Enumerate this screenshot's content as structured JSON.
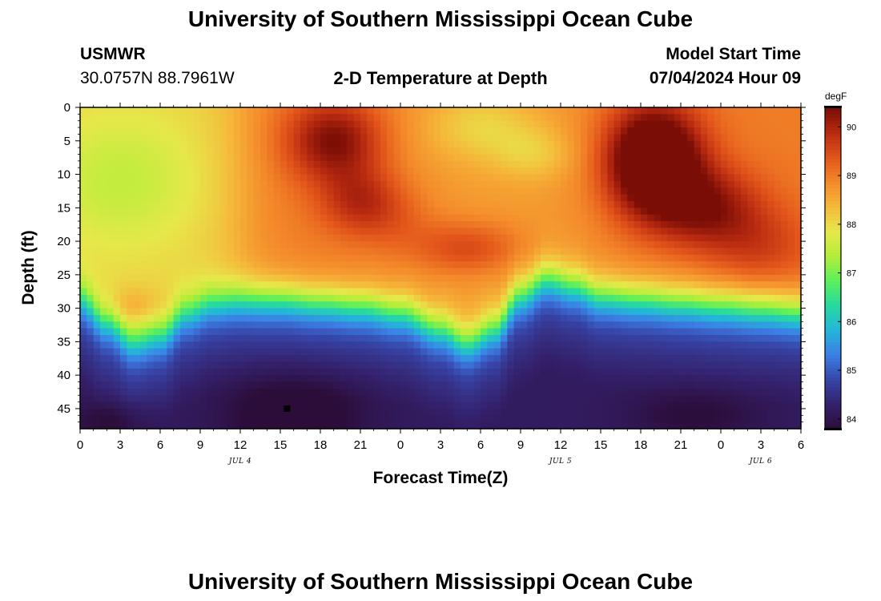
{
  "header": {
    "title": "University of Southern Mississippi Ocean Cube",
    "station": "USMWR",
    "coords": "30.0757N  88.7961W",
    "subtitle": "2-D Temperature at Depth",
    "model_start_label": "Model Start Time",
    "model_start_value": "07/04/2024 Hour 09"
  },
  "footer": {
    "title": "University of Southern Mississippi Ocean Cube"
  },
  "colors": {
    "scale": [
      "#2c0d3a",
      "#34206a",
      "#3745a8",
      "#3c7fe6",
      "#23b6d9",
      "#27d9a0",
      "#5df05a",
      "#b4ee3a",
      "#e6e84a",
      "#f5b83a",
      "#f4892a",
      "#e2541a",
      "#b82a10",
      "#7a0d06"
    ]
  },
  "chart_data": {
    "type": "heatmap",
    "title": "2-D Temperature at Depth",
    "xlabel": "Forecast Time(Z)",
    "ylabel": "Depth (ft)",
    "colorbar_label": "degF",
    "xlim": [
      0,
      54
    ],
    "ylim": [
      0,
      48
    ],
    "x_ticks": [
      0,
      3,
      6,
      9,
      12,
      15,
      18,
      21,
      24,
      27,
      30,
      33,
      36,
      39,
      42,
      45,
      48,
      51,
      54
    ],
    "x_tick_labels": [
      "0",
      "3",
      "6",
      "9",
      "12",
      "15",
      "18",
      "21",
      "0",
      "3",
      "6",
      "9",
      "12",
      "15",
      "18",
      "21",
      "0",
      "3",
      "6"
    ],
    "y_ticks": [
      0,
      5,
      10,
      15,
      20,
      25,
      30,
      35,
      40,
      45
    ],
    "y_tick_labels": [
      "0",
      "5",
      "10",
      "15",
      "20",
      "25",
      "30",
      "35",
      "40",
      "45"
    ],
    "date_labels": [
      {
        "x": 12,
        "label": "JUL 4"
      },
      {
        "x": 36,
        "label": "JUL 5"
      },
      {
        "x": 51,
        "label": "JUL 6"
      }
    ],
    "colorbar": {
      "min": 83.8,
      "max": 90.4,
      "ticks": [
        84,
        85,
        86,
        87,
        88,
        89,
        90
      ],
      "tick_labels": [
        "84",
        "85",
        "86",
        "87",
        "88",
        "89",
        "90"
      ]
    },
    "thermocline_depth_ft": [
      {
        "x": 0,
        "depth": 28.5
      },
      {
        "x": 2,
        "depth": 32
      },
      {
        "x": 4,
        "depth": 35
      },
      {
        "x": 6,
        "depth": 34
      },
      {
        "x": 8,
        "depth": 30.5
      },
      {
        "x": 10,
        "depth": 29
      },
      {
        "x": 12,
        "depth": 28.5
      },
      {
        "x": 15,
        "depth": 28.5
      },
      {
        "x": 18,
        "depth": 29
      },
      {
        "x": 21,
        "depth": 29.5
      },
      {
        "x": 24,
        "depth": 30.5
      },
      {
        "x": 27,
        "depth": 33
      },
      {
        "x": 29,
        "depth": 35
      },
      {
        "x": 31,
        "depth": 33
      },
      {
        "x": 33,
        "depth": 28
      },
      {
        "x": 35,
        "depth": 25.5
      },
      {
        "x": 37,
        "depth": 26.5
      },
      {
        "x": 39,
        "depth": 28
      },
      {
        "x": 42,
        "depth": 28.5
      },
      {
        "x": 45,
        "depth": 29
      },
      {
        "x": 48,
        "depth": 29.5
      },
      {
        "x": 51,
        "depth": 30
      },
      {
        "x": 54,
        "depth": 30.5
      }
    ],
    "surface_features": [
      {
        "x": 3,
        "depth": 11,
        "amplitude": -0.6,
        "sx": 6,
        "sy": 10
      },
      {
        "x": 4,
        "depth": 30,
        "amplitude": 0.5,
        "sx": 2.5,
        "sy": 3
      },
      {
        "x": 19,
        "depth": 5,
        "amplitude": 1.4,
        "sx": 3.5,
        "sy": 6
      },
      {
        "x": 21,
        "depth": 14,
        "amplitude": 0.9,
        "sx": 3,
        "sy": 5
      },
      {
        "x": 24,
        "depth": 17,
        "amplitude": 0.3,
        "sx": 3,
        "sy": 5
      },
      {
        "x": 30,
        "depth": 3,
        "amplitude": -0.6,
        "sx": 4,
        "sy": 5
      },
      {
        "x": 29,
        "depth": 21,
        "amplitude": 0.8,
        "sx": 4,
        "sy": 4
      },
      {
        "x": 34,
        "depth": 7,
        "amplitude": -0.5,
        "sx": 3,
        "sy": 4
      },
      {
        "x": 43,
        "depth": 8,
        "amplitude": 2.6,
        "sx": 3.5,
        "sy": 8
      },
      {
        "x": 47,
        "depth": 15,
        "amplitude": 1.2,
        "sx": 4,
        "sy": 6
      },
      {
        "x": 51,
        "depth": 21,
        "amplitude": 0.6,
        "sx": 4,
        "sy": 6
      }
    ],
    "bottom_features": [
      {
        "x": 16,
        "depth": 46,
        "amplitude": -0.7,
        "sx": 5,
        "sy": 6
      },
      {
        "x": 2,
        "depth": 47,
        "amplitude": -0.4,
        "sx": 3,
        "sy": 3
      },
      {
        "x": 46,
        "depth": 46,
        "amplitude": -0.4,
        "sx": 5,
        "sy": 4
      }
    ],
    "marker": {
      "x": 15.5,
      "depth": 45
    }
  }
}
